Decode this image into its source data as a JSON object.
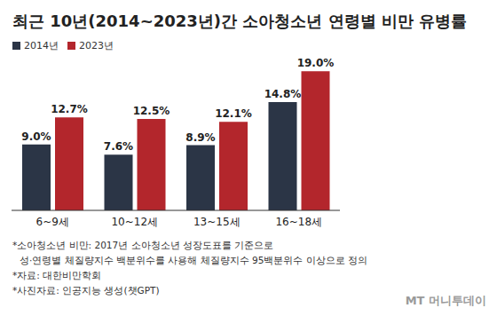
{
  "chart_data": {
    "type": "bar",
    "title": "최근 10년(2014~2023년)간 소아청소년 연령별 비만 유병률",
    "categories": [
      "6~9세",
      "10~12세",
      "13~15세",
      "16~18세"
    ],
    "series": [
      {
        "name": "2014년",
        "color": "#2b3546",
        "values": [
          9.0,
          7.6,
          8.9,
          14.8
        ],
        "value_labels": [
          "9.0%",
          "7.6%",
          "8.9%",
          "14.8%"
        ]
      },
      {
        "name": "2023년",
        "color": "#b3262c",
        "values": [
          12.7,
          12.5,
          12.1,
          19.0
        ],
        "value_labels": [
          "12.7%",
          "12.5%",
          "12.1%",
          "19.0%"
        ]
      }
    ],
    "ylim": [
      0,
      20
    ],
    "grid": false,
    "legend": "top left",
    "data_labels": true,
    "tick_labels": "x",
    "annotations": [
      "*소아청소년 비만: 2017년 소아청소년 성장도표를 기준으로",
      "성·연령별 체질량지수 백분위수를 사용해 체질량지수 95백분위수 이상으로 정의",
      "*자료: 대한비만학회",
      "*사진자료: 인공지능 생성(챗GPT)"
    ],
    "credit": "MT 머니투데이"
  }
}
